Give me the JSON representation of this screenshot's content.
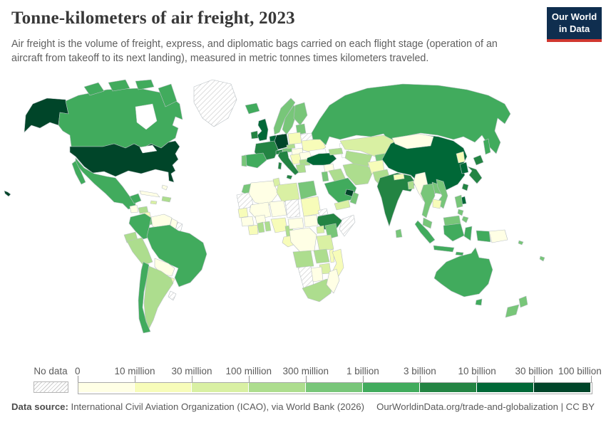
{
  "header": {
    "title": "Tonne-kilometers of air freight, 2023",
    "subtitle": "Air freight is the volume of freight, express, and diplomatic bags carried on each flight stage (operation of an aircraft from takeoff to its next landing), measured in metric tonnes times kilometers traveled.",
    "logo": {
      "line1": "Our World",
      "line2": "in Data",
      "bg": "#0f2e4f",
      "accent": "#d0372f"
    }
  },
  "footer": {
    "datasource_label": "Data source:",
    "datasource_text": " International Civil Aviation Organization (ICAO), via World Bank (2026)",
    "link_text": "OurWorldinData.org/trade-and-globalization | CC BY"
  },
  "chart_data": {
    "type": "choropleth-map",
    "title": "Tonne-kilometers of air freight",
    "year": "2023",
    "unit": "metric tonnes times kilometers traveled",
    "legend": {
      "no_data_label": "No data",
      "boundaries": [
        "0",
        "10 million",
        "30 million",
        "100 million",
        "300 million",
        "1 billion",
        "3 billion",
        "10 billion",
        "30 billion",
        "100 billion"
      ],
      "colors": [
        "#ffffe5",
        "#f7fcb9",
        "#d9f0a3",
        "#addd8e",
        "#78c679",
        "#41ab5d",
        "#238443",
        "#006837",
        "#004529"
      ]
    },
    "countries": {
      "United States": 8,
      "Canada": 5,
      "Greenland": -1,
      "Mexico": 5,
      "Guatemala": 0,
      "Honduras": 3,
      "Nicaragua": 1,
      "Costa Rica": 4,
      "Panama": 4,
      "Cuba": 0,
      "Jamaica": 2,
      "Haiti/Dominican Republic": 3,
      "Bahamas": 0,
      "Colombia": 5,
      "Venezuela": 0,
      "Guyana": 0,
      "Suriname": -1,
      "Ecuador": 3,
      "Peru": 3,
      "Brazil": 5,
      "Bolivia": 0,
      "Paraguay": 1,
      "Chile": 5,
      "Argentina": 3,
      "Uruguay": -1,
      "Iceland": 5,
      "Ireland": 6,
      "United Kingdom": 7,
      "Norway": 4,
      "Sweden": 4,
      "Finland": 4,
      "Denmark": 4,
      "Netherlands/Belgium": 7,
      "Germany": 8,
      "Poland": 1,
      "France": 6,
      "Switzerland": 6,
      "Austria": 4,
      "Czechia": 3,
      "Slovakia/Hungary": 0,
      "Ukraine": 1,
      "Belarus": -1,
      "Baltic states": 4,
      "Romania": 0,
      "Balkans": 1,
      "Bulgaria": 3,
      "Greece": 3,
      "Italy": 6,
      "Spain": 5,
      "Portugal": 4,
      "Russia": 5,
      "Turkey": 7,
      "Georgia/Azerbaijan": 3,
      "Kazakhstan": 2,
      "Uzbekistan/Turkmenistan": 3,
      "Kyrgyzstan/Tajikistan": 4,
      "Afghanistan": 1,
      "Pakistan": 3,
      "Iran": 3,
      "Iraq": 3,
      "Syria": 0,
      "Israel/Jordan": 4,
      "Kuwait": 4,
      "Saudi Arabia": 5,
      "United Arab Emirates/Qatar": 8,
      "Oman": 4,
      "Yemen": 2,
      "India": 6,
      "Nepal": 1,
      "Bangladesh": 3,
      "Sri Lanka": 4,
      "Myanmar": 0,
      "Thailand": 4,
      "Laos": 4,
      "Vietnam": 4,
      "Cambodia": 1,
      "Malaysia": 4,
      "Indonesia": 5,
      "Philippines": 4,
      "Papua New Guinea": 0,
      "China": 7,
      "Mongolia": 0,
      "North Korea": 1,
      "South Korea": 7,
      "Japan": 6,
      "Taiwan": 7,
      "Australia": 5,
      "New Zealand": 4,
      "Fiji": 4,
      "Solomon Islands": 4,
      "Morocco": 4,
      "Western Sahara/Mauritania": -1,
      "Algeria": 0,
      "Tunisia": 2,
      "Libya": 2,
      "Egypt": 4,
      "Mali": 0,
      "Niger": 0,
      "Chad": -1,
      "Sudan": 1,
      "Eritrea": -1,
      "Ethiopia": 6,
      "Somalia": -1,
      "Senegal": 1,
      "Guinea": 0,
      "Ivory Coast": 1,
      "Burkina Faso": 0,
      "Ghana": 3,
      "Togo/Benin": 3,
      "Nigeria": 1,
      "Cameroon": 3,
      "Central African Republic": 0,
      "South Sudan": 0,
      "Congo/Gabon": 1,
      "DR Congo": 0,
      "Uganda": 2,
      "Kenya": 4,
      "Tanzania": 2,
      "Angola": 3,
      "Zambia": 3,
      "Malawi": 1,
      "Mozambique": 1,
      "Zimbabwe": 2,
      "Botswana": 0,
      "Namibia": -1,
      "South Africa": 3,
      "Madagascar": 0
    }
  }
}
